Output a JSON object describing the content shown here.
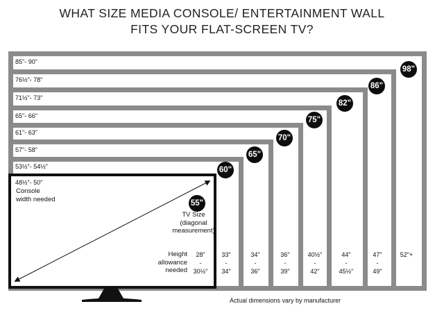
{
  "title": {
    "line1": "WHAT SIZE MEDIA CONSOLE/ ENTERTAINMENT WALL",
    "line2": "FITS YOUR FLAT-SCREEN TV?"
  },
  "tvs": [
    {
      "size": "98\"",
      "console_width": "85\"- 90\"",
      "height": [
        "52\"+"
      ]
    },
    {
      "size": "86\"",
      "console_width": "76½\"- 78\"",
      "height": [
        "47\"",
        "-",
        "49\""
      ]
    },
    {
      "size": "82\"",
      "console_width": "71½\"- 73\"",
      "height": [
        "44\"",
        "-",
        "45½\""
      ]
    },
    {
      "size": "75\"",
      "console_width": "65\"- 66\"",
      "height": [
        "40½\"",
        "-",
        "42\""
      ]
    },
    {
      "size": "70\"",
      "console_width": "61\"- 63\"",
      "height": [
        "36\"",
        "-",
        "39\""
      ]
    },
    {
      "size": "65\"",
      "console_width": "57\"- 58\"",
      "height": [
        "34\"",
        "-",
        "36\""
      ]
    },
    {
      "size": "60\"",
      "console_width": "53½\"- 54½\"",
      "height": [
        "33\"",
        "-",
        "34\""
      ]
    },
    {
      "size": "55\"",
      "console_width": "48½\"- 50\"",
      "height": [
        "28\"",
        "-",
        "30½\""
      ]
    }
  ],
  "labels": {
    "console_width_line1": "Console",
    "console_width_line2": "width needed",
    "tv_size_line1": "TV Size",
    "tv_size_line2": "(diagonal",
    "tv_size_line3": "measurement)",
    "height_line1": "Height",
    "height_line2": "allowance",
    "height_line3": "needed"
  },
  "footnote": "Actual dimensions vary by manufacturer",
  "colors": {
    "frame_gray": "#8b8b8b",
    "tv_black": "#111111",
    "badge_bg": "#0d0d0d",
    "badge_text": "#ffffff"
  }
}
